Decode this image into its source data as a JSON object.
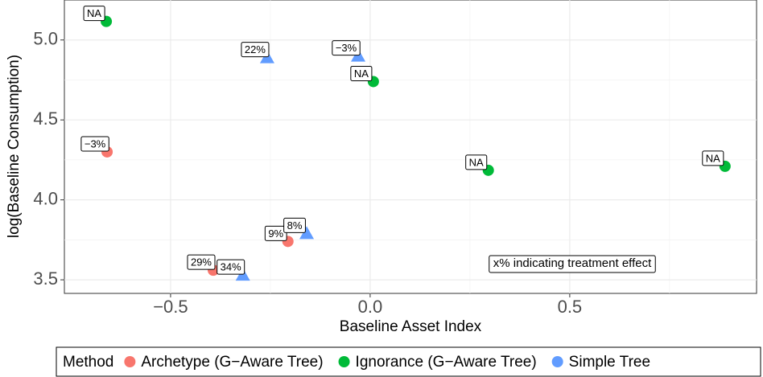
{
  "chart_data": {
    "type": "scatter",
    "x_label": "Baseline Asset Index",
    "y_label": "log(Baseline Consumption)",
    "annotation": "x% indicating treatment effect",
    "legend_title": "Method",
    "legend_position": "bottom",
    "grid": true,
    "xlim": [
      -0.766,
      0.968
    ],
    "ylim": [
      3.415,
      5.25
    ],
    "xticks": [
      {
        "value": -0.5,
        "label": "−0.5"
      },
      {
        "value": 0,
        "label": "0.0"
      },
      {
        "value": 0.5,
        "label": "0.5"
      }
    ],
    "yticks": [
      {
        "value": 3.5,
        "label": "3.5"
      },
      {
        "value": 4,
        "label": "4.0"
      },
      {
        "value": 4.5,
        "label": "4.5"
      },
      {
        "value": 5,
        "label": "5.0"
      }
    ],
    "x_minor_grid": [
      -0.25,
      0.25,
      0.75
    ],
    "y_minor_grid": [
      3.75,
      4.25,
      4.75
    ],
    "series": [
      {
        "name": "Archetype (G−Aware Tree)",
        "color": "#F8766D",
        "marker": "circle",
        "x": [
          -0.659,
          -0.206,
          -0.393
        ],
        "values": [
          4.3,
          3.74,
          3.56
        ],
        "labels": [
          "−3%",
          "9%",
          "29%"
        ]
      },
      {
        "name": "Ignorance (G−Aware Tree)",
        "color": "#00BA38",
        "marker": "circle",
        "x": [
          -0.661,
          0.008,
          0.296,
          0.889
        ],
        "values": [
          5.116,
          4.74,
          4.185,
          4.21
        ],
        "labels": [
          "NA",
          "NA",
          "NA",
          "NA"
        ]
      },
      {
        "name": "Simple Tree",
        "color": "#619CFF",
        "marker": "triangle",
        "x": [
          -0.258,
          -0.03,
          -0.159,
          -0.319
        ],
        "values": [
          4.89,
          4.9,
          3.79,
          3.53
        ],
        "labels": [
          "22%",
          "−3%",
          "8%",
          "34%"
        ]
      }
    ]
  }
}
